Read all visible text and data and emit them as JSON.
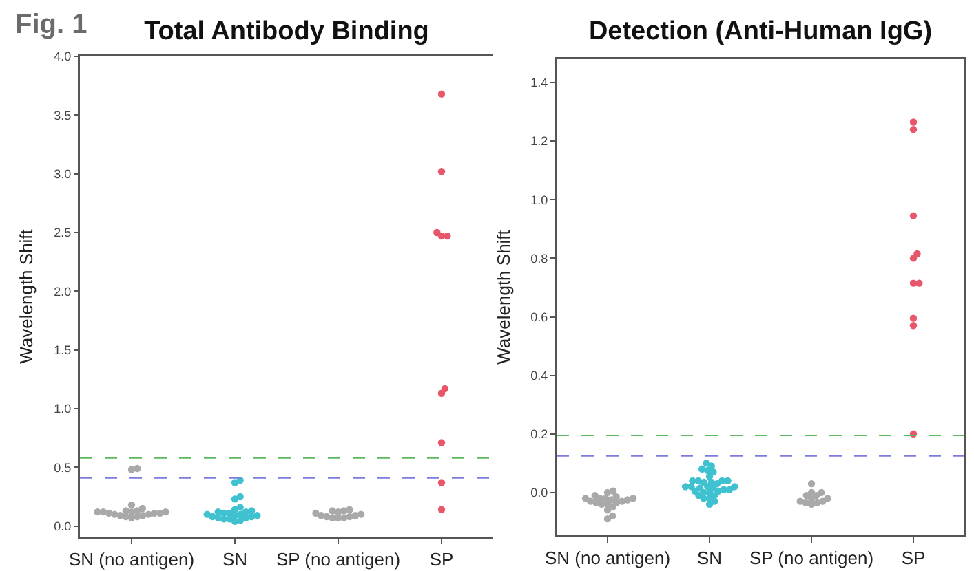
{
  "chart_data": [
    {
      "type": "scatter",
      "title": "Total Antibody Binding",
      "ylabel": "Wavelength Shift",
      "annotations": [
        "Fig. 1"
      ],
      "categories": [
        "SN (no antigen)",
        "SN",
        "SP (no antigen)",
        "SP"
      ],
      "ylim": [
        -0.09,
        4.0
      ],
      "yticks": [
        {
          "value": 0,
          "label": "0.0"
        },
        {
          "value": 0.5,
          "label": "0.5"
        },
        {
          "value": 1,
          "label": "1.0"
        },
        {
          "value": 1.5,
          "label": "1.5"
        },
        {
          "value": 2,
          "label": "2.0"
        },
        {
          "value": 2.5,
          "label": "2.5"
        },
        {
          "value": 3,
          "label": "3.0"
        },
        {
          "value": 3.5,
          "label": "3.5"
        },
        {
          "value": 4,
          "label": "4.0"
        }
      ],
      "marker": "circle",
      "series": [
        {
          "color": "#a9a9a9",
          "x": [
            "SN (no antigen)",
            "SN (no antigen)",
            "SN (no antigen)",
            "SN (no antigen)",
            "SN (no antigen)",
            "SN (no antigen)",
            "SN (no antigen)",
            "SN (no antigen)",
            "SN (no antigen)",
            "SN (no antigen)",
            "SN (no antigen)",
            "SN (no antigen)",
            "SN (no antigen)",
            "SN (no antigen)",
            "SN (no antigen)",
            "SN (no antigen)",
            "SN (no antigen)",
            "SN (no antigen)",
            "SN (no antigen)",
            "SN (no antigen)"
          ],
          "values": [
            0.07,
            0.08,
            0.08,
            0.09,
            0.09,
            0.1,
            0.1,
            0.11,
            0.11,
            0.11,
            0.12,
            0.12,
            0.12,
            0.12,
            0.13,
            0.13,
            0.15,
            0.18,
            0.48,
            0.49
          ]
        },
        {
          "color": "#3fc1cf",
          "x": [
            "SN",
            "SN",
            "SN",
            "SN",
            "SN",
            "SN",
            "SN",
            "SN",
            "SN",
            "SN",
            "SN",
            "SN",
            "SN",
            "SN",
            "SN",
            "SN",
            "SN",
            "SN",
            "SN",
            "SN",
            "SN",
            "SN",
            "SN"
          ],
          "values": [
            0.04,
            0.05,
            0.06,
            0.06,
            0.07,
            0.07,
            0.08,
            0.08,
            0.09,
            0.09,
            0.1,
            0.1,
            0.11,
            0.11,
            0.12,
            0.12,
            0.13,
            0.14,
            0.16,
            0.23,
            0.25,
            0.37,
            0.39
          ]
        },
        {
          "color": "#a9a9a9",
          "x": [
            "SP (no antigen)",
            "SP (no antigen)",
            "SP (no antigen)",
            "SP (no antigen)",
            "SP (no antigen)",
            "SP (no antigen)",
            "SP (no antigen)",
            "SP (no antigen)",
            "SP (no antigen)",
            "SP (no antigen)",
            "SP (no antigen)",
            "SP (no antigen)",
            "SP (no antigen)"
          ],
          "values": [
            0.07,
            0.07,
            0.07,
            0.08,
            0.08,
            0.09,
            0.09,
            0.1,
            0.11,
            0.12,
            0.13,
            0.13,
            0.14
          ]
        },
        {
          "color": "#e8566a",
          "x": [
            "SP",
            "SP",
            "SP",
            "SP",
            "SP",
            "SP",
            "SP",
            "SP",
            "SP",
            "SP"
          ],
          "values": [
            0.14,
            0.37,
            0.71,
            1.13,
            1.17,
            2.47,
            2.47,
            2.5,
            3.02,
            3.68
          ]
        }
      ],
      "ref_lines": [
        {
          "axis": "y",
          "value": 0.58,
          "color": "#5cb85c",
          "line_style": "dashed"
        },
        {
          "axis": "y",
          "value": 0.41,
          "color": "#7b7be0",
          "line_style": "dashed"
        }
      ]
    },
    {
      "type": "scatter",
      "title": "Detection (Anti-Human IgG)",
      "ylabel": "Wavelength Shift",
      "categories": [
        "SN (no antigen)",
        "SN",
        "SP (no antigen)",
        "SP"
      ],
      "ylim": [
        -0.146,
        1.48
      ],
      "yticks": [
        {
          "value": 0,
          "label": "0.0"
        },
        {
          "value": 0.2,
          "label": "0.2"
        },
        {
          "value": 0.4,
          "label": "0.4"
        },
        {
          "value": 0.6,
          "label": "0.6"
        },
        {
          "value": 0.8,
          "label": "0.8"
        },
        {
          "value": 1,
          "label": "1.0"
        },
        {
          "value": 1.2,
          "label": "1.2"
        },
        {
          "value": 1.4,
          "label": "1.4"
        }
      ],
      "marker": "circle",
      "series": [
        {
          "color": "#a9a9a9",
          "x": [
            "SN (no antigen)",
            "SN (no antigen)",
            "SN (no antigen)",
            "SN (no antigen)",
            "SN (no antigen)",
            "SN (no antigen)",
            "SN (no antigen)",
            "SN (no antigen)",
            "SN (no antigen)",
            "SN (no antigen)",
            "SN (no antigen)",
            "SN (no antigen)",
            "SN (no antigen)",
            "SN (no antigen)",
            "SN (no antigen)",
            "SN (no antigen)",
            "SN (no antigen)",
            "SN (no antigen)",
            "SN (no antigen)",
            "SN (no antigen)"
          ],
          "values": [
            -0.09,
            -0.08,
            -0.06,
            -0.05,
            -0.04,
            -0.04,
            -0.035,
            -0.035,
            -0.03,
            -0.03,
            -0.025,
            -0.025,
            -0.02,
            -0.02,
            -0.02,
            -0.02,
            -0.015,
            -0.01,
            0.0,
            0.005
          ]
        },
        {
          "color": "#3fc1cf",
          "x": [
            "SN",
            "SN",
            "SN",
            "SN",
            "SN",
            "SN",
            "SN",
            "SN",
            "SN",
            "SN",
            "SN",
            "SN",
            "SN",
            "SN",
            "SN",
            "SN",
            "SN",
            "SN",
            "SN",
            "SN",
            "SN",
            "SN",
            "SN",
            "SN",
            "SN",
            "SN",
            "SN",
            "SN",
            "SN",
            "SN",
            "SN"
          ],
          "values": [
            -0.04,
            -0.03,
            -0.02,
            -0.02,
            -0.01,
            -0.01,
            0.0,
            0.0,
            0.005,
            0.005,
            0.01,
            0.01,
            0.015,
            0.015,
            0.02,
            0.02,
            0.02,
            0.02,
            0.03,
            0.035,
            0.035,
            0.04,
            0.04,
            0.04,
            0.04,
            0.055,
            0.07,
            0.075,
            0.08,
            0.09,
            0.1
          ]
        },
        {
          "color": "#a9a9a9",
          "x": [
            "SP (no antigen)",
            "SP (no antigen)",
            "SP (no antigen)",
            "SP (no antigen)",
            "SP (no antigen)",
            "SP (no antigen)",
            "SP (no antigen)",
            "SP (no antigen)",
            "SP (no antigen)",
            "SP (no antigen)",
            "SP (no antigen)",
            "SP (no antigen)"
          ],
          "values": [
            -0.04,
            -0.035,
            -0.035,
            -0.03,
            -0.03,
            -0.02,
            -0.02,
            -0.01,
            -0.01,
            0.0,
            0.0,
            0.03
          ]
        },
        {
          "color": "#e8566a",
          "x": [
            "SP",
            "SP",
            "SP",
            "SP",
            "SP",
            "SP",
            "SP",
            "SP",
            "SP",
            "SP"
          ],
          "values": [
            0.2,
            0.57,
            0.595,
            0.715,
            0.715,
            0.8,
            0.815,
            0.945,
            1.24,
            1.265
          ]
        }
      ],
      "ref_lines": [
        {
          "axis": "y",
          "value": 0.195,
          "color": "#5cb85c",
          "line_style": "dashed"
        },
        {
          "axis": "y",
          "value": 0.125,
          "color": "#7b7be0",
          "line_style": "dashed"
        }
      ]
    }
  ]
}
